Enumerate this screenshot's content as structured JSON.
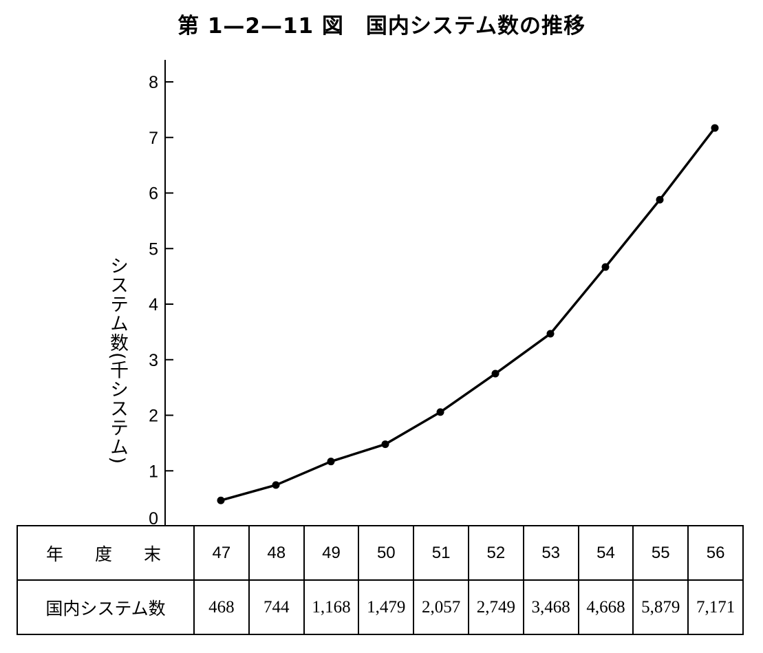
{
  "chart_data": {
    "type": "line",
    "title": "第 1—2—11 図　国内システム数の推移",
    "ylabel": "システム数(千システム)",
    "ylim": [
      0,
      8
    ],
    "yticks": [
      0,
      1,
      2,
      3,
      4,
      5,
      6,
      7,
      8
    ],
    "categories": [
      "47",
      "48",
      "49",
      "50",
      "51",
      "52",
      "53",
      "54",
      "55",
      "56"
    ],
    "series": [
      {
        "values": [
          468,
          744,
          1168,
          1479,
          2057,
          2749,
          3468,
          4668,
          5879,
          7171
        ]
      }
    ],
    "value_labels": [
      "468",
      "744",
      "1,168",
      "1,479",
      "2,057",
      "2,749",
      "3,468",
      "4,668",
      "5,879",
      "7,171"
    ],
    "grid": false
  },
  "table": {
    "row1_header": "年度末",
    "row2_header": "国内システム数"
  },
  "colors": {
    "line": "#000000"
  }
}
